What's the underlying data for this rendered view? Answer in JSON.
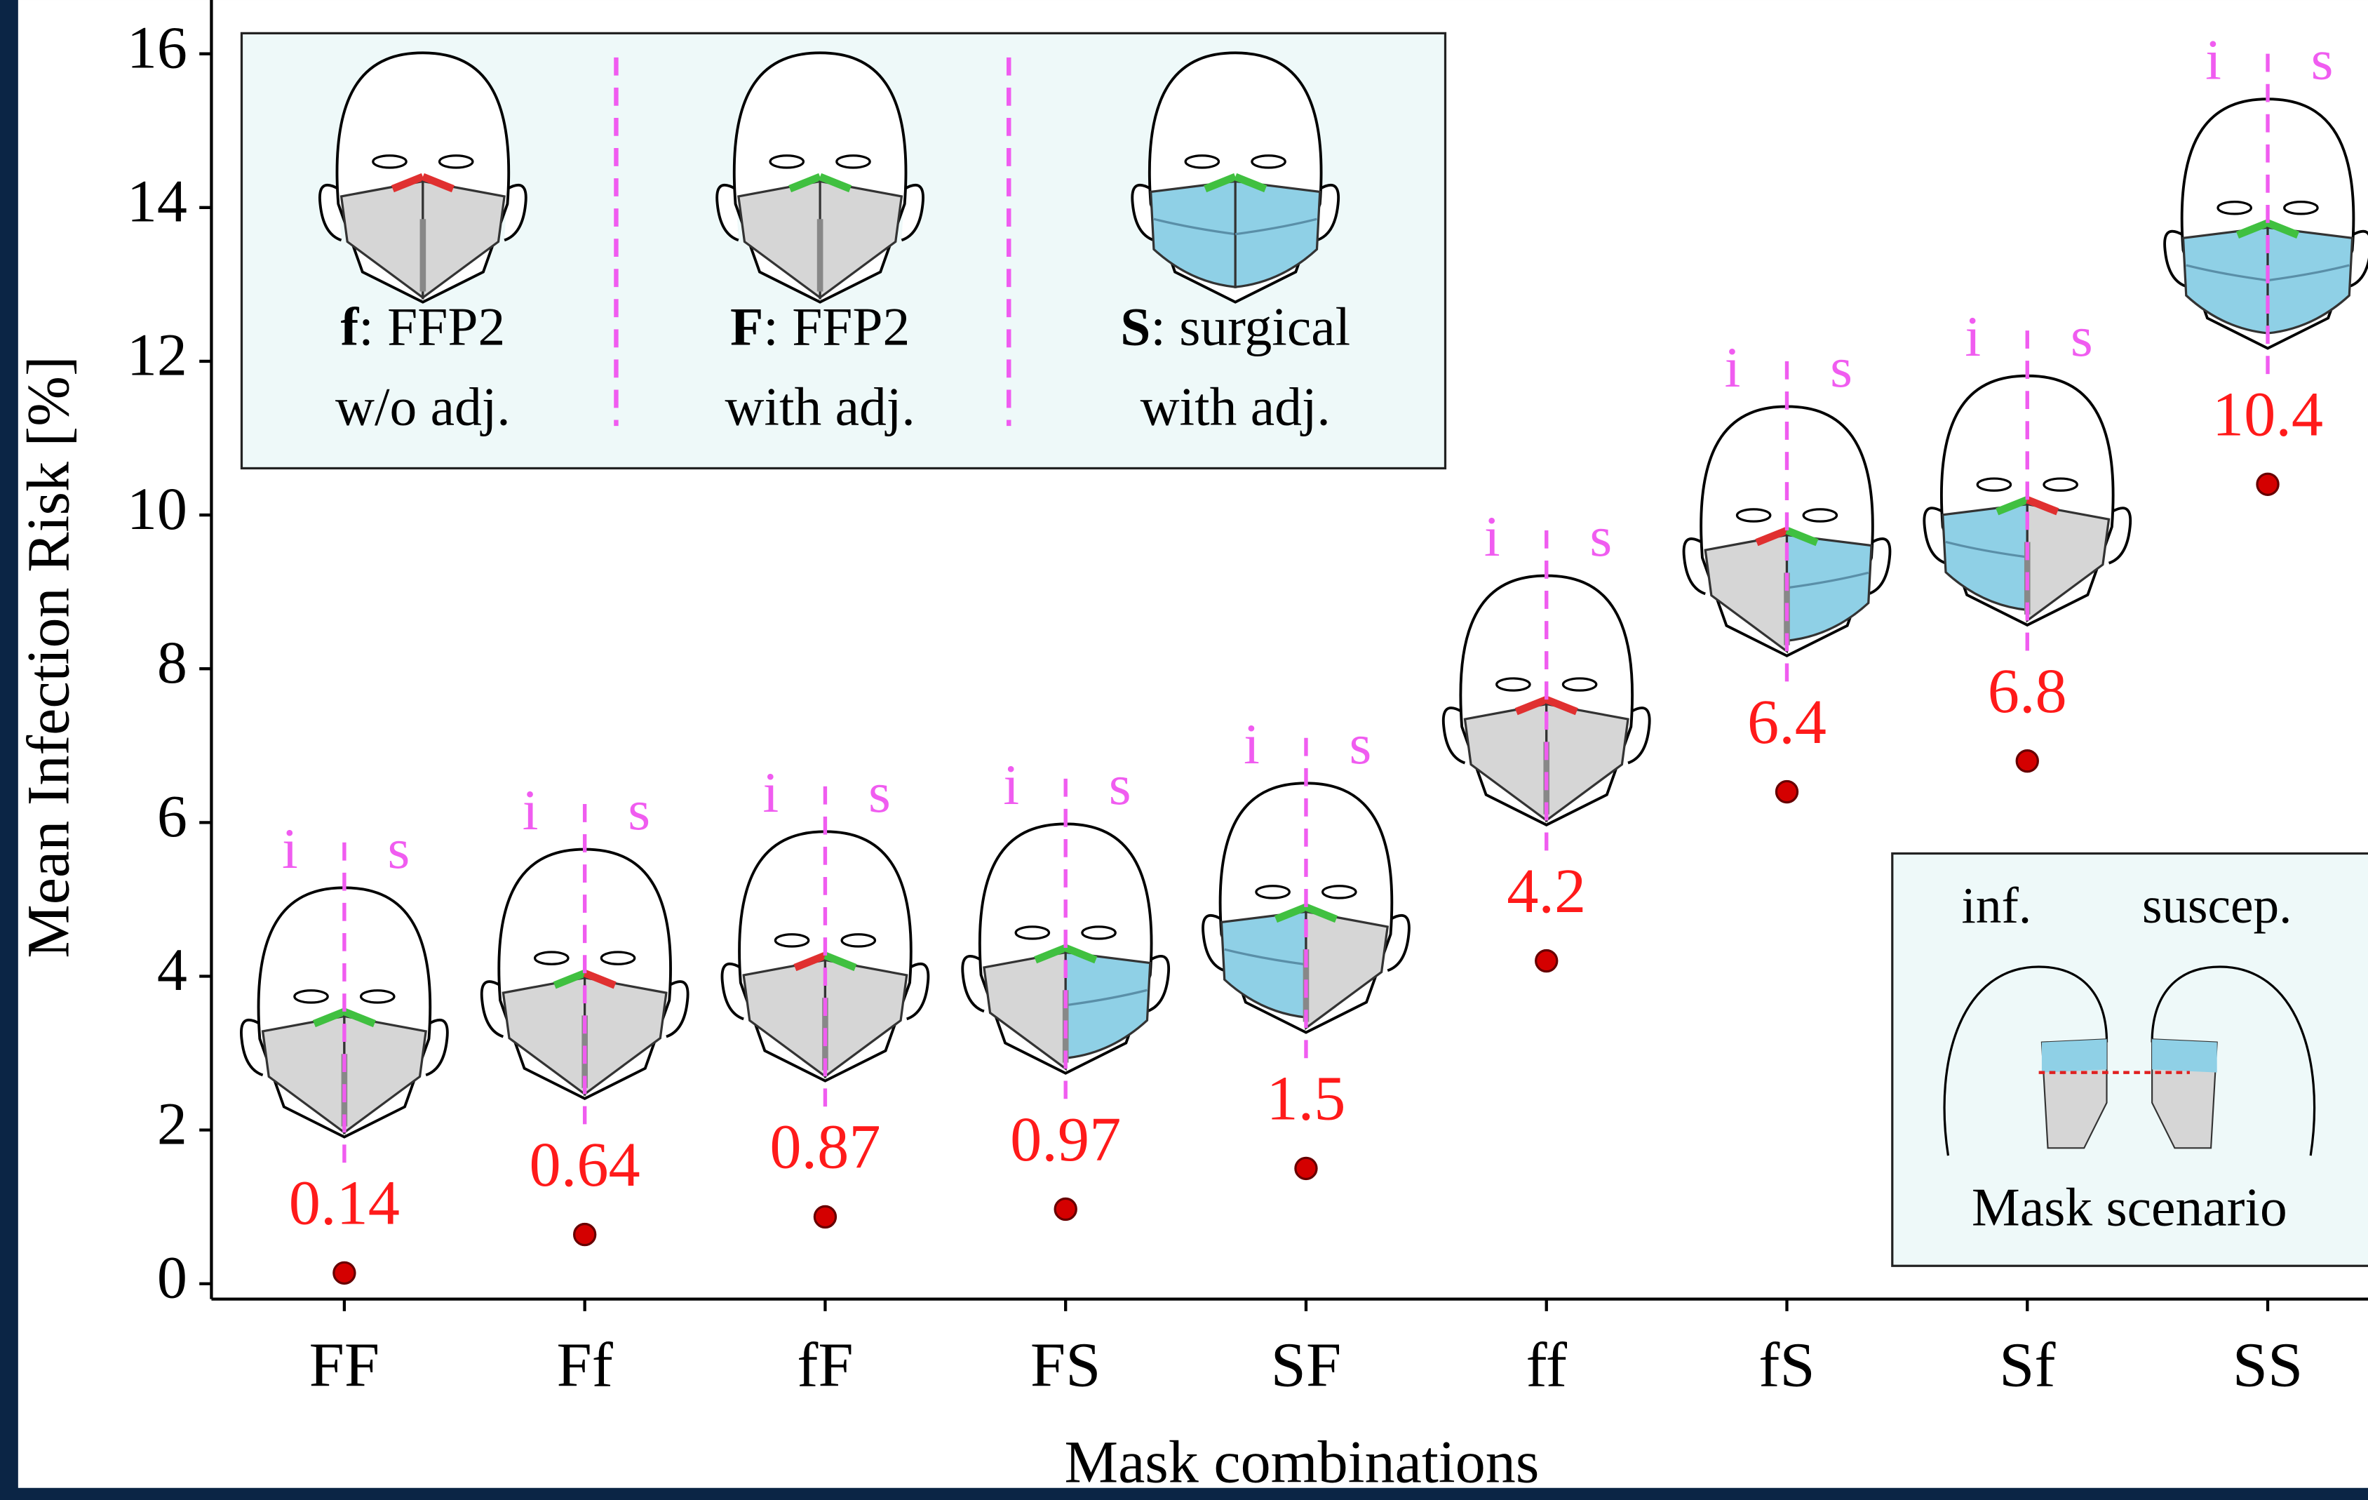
{
  "chart_data": {
    "type": "scatter",
    "y_label": "Mean Infection Risk [%]",
    "x_label": "Mask combinations",
    "categories": [
      "FF",
      "Ff",
      "fF",
      "FS",
      "SF",
      "ff",
      "fS",
      "Sf",
      "SS"
    ],
    "values": [
      0.14,
      0.64,
      0.87,
      0.97,
      1.5,
      4.2,
      6.4,
      6.8,
      10.4
    ],
    "color": "#d40000",
    "label_color": "#ff1a1a",
    "ylim": [
      -0.2,
      16.7
    ],
    "yticks": [
      0,
      2,
      4,
      6,
      8,
      10,
      12,
      14,
      16
    ],
    "role_labels": [
      "i",
      "s"
    ],
    "legend": [
      {
        "key": "f",
        "text": ": FFP2",
        "text2": "w/o adj."
      },
      {
        "key": "F",
        "text": ": FFP2",
        "text2": "with adj."
      },
      {
        "key": "S",
        "text": ": surgical",
        "text2": "with adj."
      }
    ],
    "inset": {
      "infected": "inf.",
      "susceptible": "suscep.",
      "title": "Mask scenario"
    }
  }
}
